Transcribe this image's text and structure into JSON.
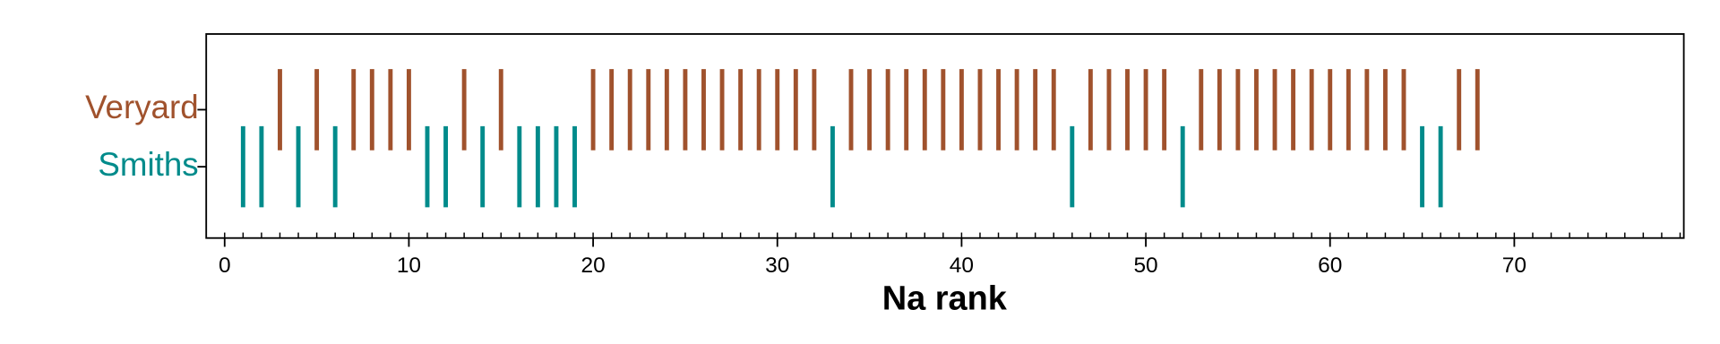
{
  "chart_data": {
    "type": "strip",
    "x_label": "Na rank",
    "xlim": [
      -1,
      79.2
    ],
    "xticks": [
      0,
      10,
      20,
      30,
      40,
      50,
      60,
      70
    ],
    "x_minor_ticks": [
      0,
      1,
      2,
      3,
      4,
      5,
      6,
      7,
      8,
      9,
      10,
      11,
      12,
      13,
      14,
      15,
      16,
      17,
      18,
      19,
      20,
      21,
      22,
      23,
      24,
      25,
      26,
      27,
      28,
      29,
      30,
      31,
      32,
      33,
      34,
      35,
      36,
      37,
      38,
      39,
      40,
      41,
      42,
      43,
      44,
      45,
      46,
      47,
      48,
      49,
      50,
      51,
      52,
      53,
      54,
      55,
      56,
      57,
      58,
      59,
      60,
      61,
      62,
      63,
      64,
      65,
      66,
      67,
      68,
      69,
      70,
      71,
      72,
      73,
      74,
      75,
      76,
      77,
      78,
      79
    ],
    "series": [
      {
        "name": "Veryard",
        "color": "#a0522d",
        "values": [
          3,
          5,
          7,
          8,
          9,
          10,
          13,
          15,
          20,
          21,
          22,
          23,
          24,
          25,
          26,
          27,
          28,
          29,
          30,
          31,
          32,
          34,
          35,
          36,
          37,
          38,
          39,
          40,
          41,
          42,
          43,
          44,
          45,
          47,
          48,
          49,
          50,
          51,
          53,
          54,
          55,
          56,
          57,
          58,
          59,
          60,
          61,
          62,
          63,
          64,
          67,
          68
        ]
      },
      {
        "name": "Smiths",
        "color": "#008b8b",
        "values": [
          1,
          2,
          4,
          6,
          11,
          12,
          14,
          16,
          17,
          18,
          19,
          33,
          46,
          52,
          65,
          66
        ]
      }
    ]
  }
}
